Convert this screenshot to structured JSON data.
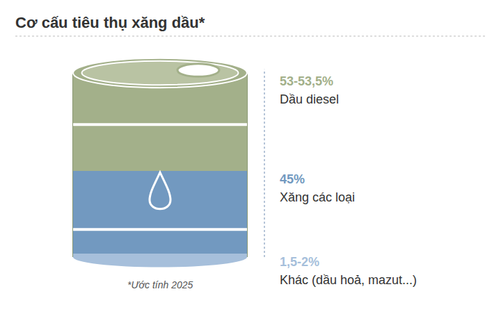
{
  "chart_data": {
    "type": "bar",
    "title": "Cơ cấu tiêu thụ xăng dầu*",
    "annotations": [
      "*Ước tính 2025"
    ],
    "categories": [
      null
    ],
    "series": [
      {
        "name": "Dầu diesel",
        "color": "#a3b08a",
        "values": [
          53.25
        ],
        "value_labels": [
          "53-53,5%"
        ]
      },
      {
        "name": "Xăng các loại",
        "color": "#7299c0",
        "values": [
          45
        ],
        "value_labels": [
          "45%"
        ]
      },
      {
        "name": "Khác (dầu hoả, mazut...)",
        "color": "#a6bfdb",
        "values": [
          1.75
        ],
        "value_labels": [
          "1,5-2%"
        ]
      }
    ],
    "stacked": true,
    "data_labels": true,
    "grid": false,
    "tick_labels": false,
    "ylim": [
      0,
      100
    ],
    "yticks": []
  }
}
